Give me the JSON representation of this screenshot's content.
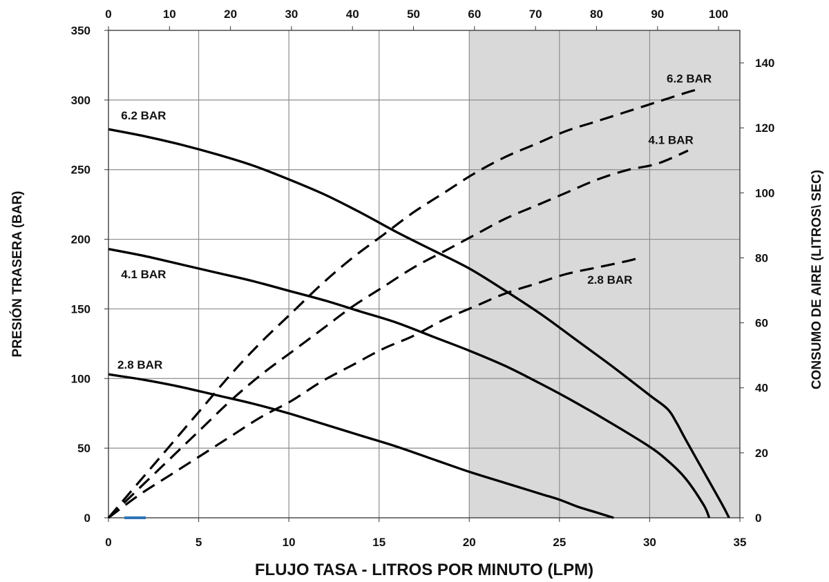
{
  "chart_data": {
    "type": "line",
    "title": "",
    "xlabel": "FLUJO TASA -  LITROS POR MINUTO (LPM)",
    "ylabel": "PRESIÓN TRASERA  (BAR)",
    "y2label": "CONSUMO DE AIRE (LITROS\\ SEC)",
    "xlim": [
      0,
      35
    ],
    "ylim": [
      0,
      350
    ],
    "x2lim": [
      0,
      103.5
    ],
    "y2lim": [
      0,
      150
    ],
    "x_ticks": [
      0,
      5,
      10,
      15,
      20,
      25,
      30,
      35
    ],
    "y_ticks": [
      0,
      50,
      100,
      150,
      200,
      250,
      300,
      350
    ],
    "x2_ticks": [
      0,
      10,
      20,
      30,
      40,
      50,
      60,
      70,
      80,
      90,
      100
    ],
    "y2_ticks": [
      0,
      20,
      40,
      60,
      80,
      100,
      120,
      140
    ],
    "grid": true,
    "shaded_region_x": [
      20,
      35
    ],
    "shade_color": "#d9d9d9",
    "line_color": "#000000",
    "marker_color": "#2e75b6",
    "pressure_series": [
      {
        "name": "6.2 BAR",
        "label_pos": [
          0.7,
          286
        ],
        "x": [
          0,
          2,
          4,
          6,
          8,
          10,
          12,
          14,
          16,
          18,
          20,
          22,
          24,
          26,
          28,
          30,
          31,
          31.5,
          32,
          33,
          34,
          34.4
        ],
        "y": [
          279,
          274,
          268,
          261,
          253,
          243,
          232,
          219,
          205,
          192,
          179,
          163,
          146,
          127,
          108,
          88,
          78,
          68,
          56,
          33,
          10,
          0
        ]
      },
      {
        "name": "4.1 BAR",
        "label_pos": [
          0.7,
          172
        ],
        "x": [
          0,
          2,
          4,
          6,
          8,
          10,
          12,
          14,
          16,
          18,
          20,
          22,
          24,
          26,
          28,
          30,
          31,
          32,
          33,
          33.3
        ],
        "y": [
          193,
          188,
          182,
          176,
          170,
          163,
          156,
          148,
          140,
          130,
          120,
          109,
          96,
          82,
          67,
          51,
          41,
          28,
          9,
          0
        ]
      },
      {
        "name": "2.8 BAR",
        "label_pos": [
          0.5,
          107
        ],
        "x": [
          0,
          2,
          4,
          6,
          8,
          10,
          12,
          14,
          16,
          18,
          20,
          22,
          24,
          25,
          26,
          27,
          28
        ],
        "y": [
          103,
          99,
          94,
          88,
          82,
          75,
          67,
          59,
          51,
          42,
          33,
          25,
          17,
          13,
          8,
          4,
          0
        ]
      }
    ],
    "air_series": [
      {
        "name": "6.2 BAR",
        "label_pos": [
          91.5,
          134
        ],
        "x": [
          0,
          5,
          10,
          15,
          20,
          25,
          30,
          35,
          40,
          45,
          50,
          55,
          60,
          65,
          70,
          75,
          80,
          85,
          90,
          95,
          97
        ],
        "y": [
          0,
          11,
          22,
          33,
          44,
          54,
          63,
          72,
          80,
          87,
          94,
          100,
          106,
          111,
          115,
          119,
          122,
          125,
          128,
          131,
          132
        ]
      },
      {
        "name": "4.1 BAR",
        "label_pos": [
          88.5,
          115
        ],
        "x": [
          0,
          5,
          10,
          15,
          20,
          25,
          30,
          35,
          40,
          45,
          50,
          55,
          60,
          65,
          70,
          75,
          80,
          85,
          90,
          95
        ],
        "y": [
          0,
          9,
          18,
          27,
          36,
          44,
          51,
          58,
          65,
          71,
          77,
          82,
          87,
          92,
          96,
          100,
          104,
          107,
          109,
          113
        ]
      },
      {
        "name": "2.8 BAR",
        "label_pos": [
          78.5,
          72
        ],
        "x": [
          0,
          5,
          10,
          15,
          20,
          25,
          30,
          35,
          40,
          45,
          50,
          55,
          60,
          65,
          70,
          75,
          80,
          85,
          87
        ],
        "y": [
          0,
          7,
          13,
          19,
          25,
          31,
          36,
          42,
          47,
          52,
          56,
          61,
          65,
          69,
          72,
          75,
          77,
          79,
          80
        ]
      }
    ]
  }
}
